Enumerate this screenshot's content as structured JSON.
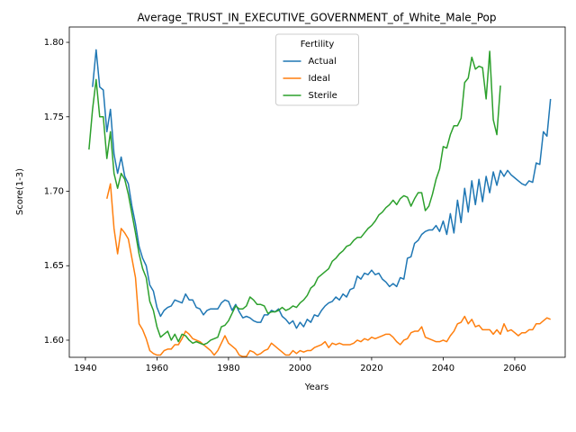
{
  "chart_data": {
    "type": "line",
    "title": "Average_TRUST_IN_EXECUTIVE_GOVERNMENT_of_White_Male_Pop",
    "x_label": "Years",
    "y_label": "Score(1-3)",
    "legend_title": "Fertility",
    "legend": "upper center",
    "grid": false,
    "xlim": [
      1935.5,
      2074.1
    ],
    "ylim": [
      1.5885,
      1.8103
    ],
    "xticks": [
      1940,
      1960,
      1980,
      2000,
      2020,
      2040,
      2060
    ],
    "yticks": [
      {
        "value": 1.6,
        "label": "1.60"
      },
      1.65,
      {
        "value": 1.7,
        "label": "1.70"
      },
      1.75,
      {
        "value": 1.8,
        "label": "1.80"
      }
    ],
    "x": [
      1941,
      1942,
      1943,
      1944,
      1945,
      1946,
      1947,
      1948,
      1949,
      1950,
      1951,
      1952,
      1953,
      1954,
      1955,
      1956,
      1957,
      1958,
      1959,
      1960,
      1961,
      1962,
      1963,
      1964,
      1965,
      1966,
      1967,
      1968,
      1969,
      1970,
      1971,
      1972,
      1973,
      1974,
      1975,
      1976,
      1977,
      1978,
      1979,
      1980,
      1981,
      1982,
      1983,
      1984,
      1985,
      1986,
      1987,
      1988,
      1989,
      1990,
      1991,
      1992,
      1993,
      1994,
      1995,
      1996,
      1997,
      1998,
      1999,
      2000,
      2001,
      2002,
      2003,
      2004,
      2005,
      2006,
      2007,
      2008,
      2009,
      2010,
      2011,
      2012,
      2013,
      2014,
      2015,
      2016,
      2017,
      2018,
      2019,
      2020,
      2021,
      2022,
      2023,
      2024,
      2025,
      2026,
      2027,
      2028,
      2029,
      2030,
      2031,
      2032,
      2033,
      2034,
      2035,
      2036,
      2037,
      2038,
      2039,
      2040,
      2041,
      2042,
      2043,
      2044,
      2045,
      2046,
      2047,
      2048,
      2049,
      2050,
      2051,
      2052,
      2053,
      2054,
      2055,
      2056,
      2057,
      2058,
      2059,
      2060,
      2061,
      2062,
      2063,
      2064,
      2065,
      2066,
      2067,
      2068,
      2069,
      2070
    ],
    "series": [
      {
        "name": "Actual",
        "color": "#1f77b4",
        "values": [
          null,
          1.77,
          1.795,
          1.77,
          1.768,
          1.74,
          1.755,
          1.725,
          1.712,
          1.723,
          1.71,
          1.705,
          1.69,
          1.678,
          1.663,
          1.655,
          1.65,
          1.637,
          1.633,
          1.622,
          1.616,
          1.62,
          1.622,
          1.623,
          1.627,
          1.626,
          1.625,
          1.631,
          1.627,
          1.627,
          1.622,
          1.621,
          1.617,
          1.62,
          1.621,
          1.621,
          1.621,
          1.625,
          1.627,
          1.626,
          1.62,
          1.624,
          1.619,
          1.615,
          1.616,
          1.615,
          1.613,
          1.612,
          1.612,
          1.617,
          1.617,
          1.62,
          1.619,
          1.621,
          1.616,
          1.614,
          1.611,
          1.613,
          1.608,
          1.612,
          1.609,
          1.614,
          1.612,
          1.617,
          1.616,
          1.62,
          1.623,
          1.625,
          1.626,
          1.629,
          1.627,
          1.631,
          1.629,
          1.634,
          1.635,
          1.643,
          1.641,
          1.645,
          1.644,
          1.647,
          1.644,
          1.645,
          1.641,
          1.639,
          1.636,
          1.638,
          1.636,
          1.642,
          1.641,
          1.655,
          1.656,
          1.665,
          1.667,
          1.671,
          1.673,
          1.674,
          1.674,
          1.677,
          1.673,
          1.68,
          1.671,
          1.685,
          1.672,
          1.694,
          1.679,
          1.702,
          1.686,
          1.707,
          1.691,
          1.708,
          1.693,
          1.71,
          1.699,
          1.713,
          1.704,
          1.714,
          1.71,
          1.714,
          1.711,
          1.709,
          1.707,
          1.705,
          1.704,
          1.707,
          1.706,
          1.719,
          1.718,
          1.74,
          1.737,
          1.762
        ]
      },
      {
        "name": "Ideal",
        "color": "#ff7f0e",
        "values": [
          null,
          null,
          null,
          null,
          null,
          1.695,
          1.705,
          1.675,
          1.658,
          1.675,
          1.672,
          1.668,
          1.655,
          1.642,
          1.611,
          1.607,
          1.601,
          1.593,
          1.591,
          1.59,
          1.59,
          1.593,
          1.594,
          1.594,
          1.597,
          1.597,
          1.601,
          1.606,
          1.604,
          1.601,
          1.6,
          1.599,
          1.597,
          1.595,
          1.593,
          1.59,
          1.593,
          1.598,
          1.603,
          1.598,
          1.596,
          1.594,
          1.59,
          1.589,
          1.589,
          1.593,
          1.592,
          1.59,
          1.591,
          1.593,
          1.594,
          1.598,
          1.596,
          1.594,
          1.592,
          1.59,
          1.59,
          1.593,
          1.591,
          1.593,
          1.592,
          1.593,
          1.593,
          1.595,
          1.596,
          1.597,
          1.599,
          1.595,
          1.598,
          1.597,
          1.598,
          1.597,
          1.597,
          1.597,
          1.598,
          1.6,
          1.599,
          1.601,
          1.6,
          1.602,
          1.601,
          1.602,
          1.603,
          1.604,
          1.604,
          1.602,
          1.599,
          1.597,
          1.6,
          1.601,
          1.605,
          1.606,
          1.606,
          1.609,
          1.602,
          1.601,
          1.6,
          1.599,
          1.599,
          1.6,
          1.599,
          1.603,
          1.606,
          1.611,
          1.612,
          1.616,
          1.611,
          1.614,
          1.609,
          1.61,
          1.607,
          1.607,
          1.607,
          1.604,
          1.607,
          1.604,
          1.611,
          1.606,
          1.607,
          1.605,
          1.603,
          1.605,
          1.605,
          1.607,
          1.607,
          1.611,
          1.611,
          1.613,
          1.615,
          1.614
        ]
      },
      {
        "name": "Sterile",
        "color": "#2ca02c",
        "values": [
          1.728,
          1.755,
          1.775,
          1.75,
          1.75,
          1.722,
          1.74,
          1.712,
          1.702,
          1.712,
          1.708,
          1.698,
          1.685,
          1.672,
          1.658,
          1.648,
          1.642,
          1.626,
          1.62,
          1.609,
          1.602,
          1.604,
          1.606,
          1.6,
          1.604,
          1.599,
          1.604,
          1.603,
          1.6,
          1.598,
          1.599,
          1.598,
          1.597,
          1.598,
          1.6,
          1.601,
          1.602,
          1.609,
          1.61,
          1.613,
          1.618,
          1.623,
          1.621,
          1.621,
          1.623,
          1.629,
          1.627,
          1.624,
          1.624,
          1.623,
          1.618,
          1.619,
          1.619,
          1.62,
          1.622,
          1.62,
          1.621,
          1.623,
          1.622,
          1.625,
          1.627,
          1.63,
          1.635,
          1.637,
          1.642,
          1.644,
          1.646,
          1.648,
          1.653,
          1.655,
          1.658,
          1.66,
          1.663,
          1.664,
          1.667,
          1.669,
          1.669,
          1.672,
          1.675,
          1.677,
          1.68,
          1.684,
          1.686,
          1.689,
          1.691,
          1.694,
          1.691,
          1.695,
          1.697,
          1.696,
          1.69,
          1.695,
          1.699,
          1.699,
          1.687,
          1.69,
          1.698,
          1.708,
          1.715,
          1.73,
          1.729,
          1.738,
          1.744,
          1.744,
          1.749,
          1.773,
          1.776,
          1.79,
          1.782,
          1.784,
          1.783,
          1.762,
          1.794,
          1.748,
          1.738,
          1.771,
          null,
          null,
          null,
          null,
          null,
          null,
          null,
          null,
          null,
          null,
          null,
          null,
          null,
          null
        ]
      }
    ]
  }
}
